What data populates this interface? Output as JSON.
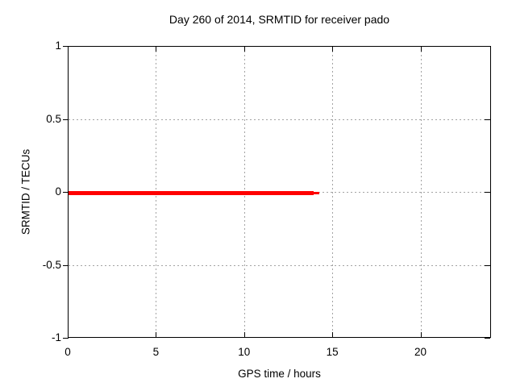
{
  "chart_data": {
    "type": "line",
    "title": "Day 260 of 2014, SRMTID for receiver pado",
    "xlabel": "GPS time / hours",
    "ylabel": "SRMTID / TECUs",
    "xlim": [
      0,
      24
    ],
    "ylim": [
      -1,
      1
    ],
    "grid": true,
    "grid_color": "#a3a3a3",
    "x_ticks": [
      {
        "value": 0,
        "label": "0"
      },
      {
        "value": 5,
        "label": "5"
      },
      {
        "value": 10,
        "label": "10"
      },
      {
        "value": 15,
        "label": "15"
      },
      {
        "value": 20,
        "label": "20"
      }
    ],
    "y_ticks": [
      {
        "value": 1,
        "label": "1"
      },
      {
        "value": 0.5,
        "label": "0.5"
      },
      {
        "value": 0,
        "label": "0"
      },
      {
        "value": -0.5,
        "label": "-0.5"
      },
      {
        "value": -1,
        "label": "-1"
      }
    ],
    "x_gridlines": [
      5,
      10,
      15,
      20
    ],
    "y_gridlines": [
      0.5,
      0,
      -0.5
    ],
    "series": [
      {
        "name": "SRMTID",
        "color": "#ff0000",
        "y_value": 0,
        "x_start": 0,
        "x_end": 14.2,
        "segments": [
          {
            "x_start": 0,
            "x_end": 13.9,
            "linewidth": 5
          },
          {
            "x_start": 13.9,
            "x_end": 14.2,
            "linewidth": 3
          }
        ]
      }
    ]
  }
}
